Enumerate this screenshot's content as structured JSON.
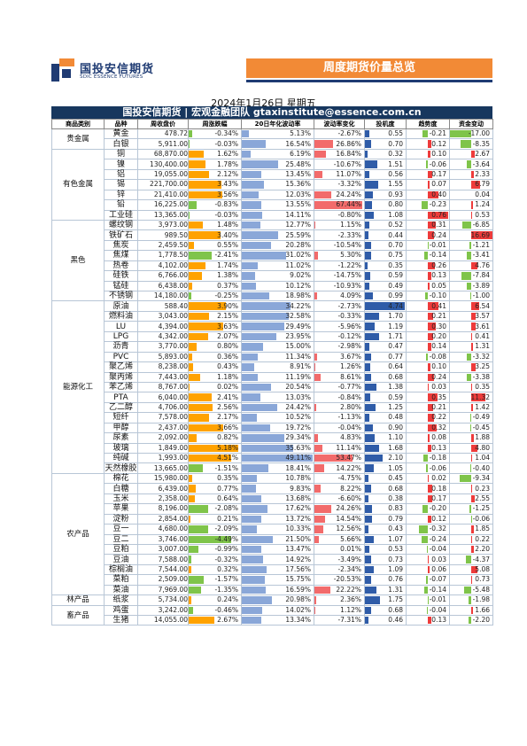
{
  "header": {
    "logo_cn": "国投安信期货",
    "logo_en": "SDIC ESSENCE FUTURES",
    "banner": "周度期货价量总览",
    "date": "2024年1月26日 星期五",
    "subtitle": "国投安信期货 | 宏观金融团队  gtaxinstitute@essence.com.cn"
  },
  "columns": [
    "商品类别",
    "品种",
    "周收盘价",
    "周涨跌幅",
    "20日年化波动率",
    "波动率变化",
    "投机度",
    "趋势度",
    "资金变动"
  ],
  "colors": {
    "up_bar": "#ffa200",
    "vol_bar": "#8aa7d8",
    "volchg_bar": "#f26b6b",
    "spec_bar": "#2f5ca8",
    "neg_bar": "#7fc44a",
    "pos_bar": "#ee3b3b",
    "banner": "#f28a36",
    "navy": "#17375e"
  },
  "groups": [
    {
      "category": "贵金属",
      "rows": [
        [
          "黄金",
          "478.72",
          "-0.34%",
          "5.13%",
          "-2.67%",
          "0.55",
          "-0.21",
          "-17.00"
        ],
        [
          "白银",
          "5,911.00",
          "-0.03%",
          "16.54%",
          "26.86%",
          "0.70",
          "0.12",
          "-8.35"
        ]
      ]
    },
    {
      "category": "有色金属",
      "rows": [
        [
          "铜",
          "68,870.00",
          "1.62%",
          "6.19%",
          "16.84%",
          "0.32",
          "0.10",
          "2.67"
        ],
        [
          "镍",
          "130,400.00",
          "1.78%",
          "25.48%",
          "-10.67%",
          "1.51",
          "-0.06",
          "-3.64"
        ],
        [
          "铝",
          "19,055.00",
          "2.12%",
          "13.45%",
          "11.07%",
          "0.56",
          "0.17",
          "2.33"
        ],
        [
          "锡",
          "221,700.00",
          "3.43%",
          "15.36%",
          "-3.32%",
          "1.55",
          "0.07",
          "6.79"
        ],
        [
          "锌",
          "21,410.00",
          "3.56%",
          "12.03%",
          "24.24%",
          "0.93",
          "0.40",
          "0.04"
        ],
        [
          "铅",
          "16,225.00",
          "-0.83%",
          "13.55%",
          "67.44%",
          "0.80",
          "-0.23",
          "1.24"
        ],
        [
          "工业硅",
          "13,365.00",
          "-0.03%",
          "14.11%",
          "-0.80%",
          "1.08",
          "0.76",
          "0.53"
        ]
      ]
    },
    {
      "category": "黑色",
      "rows": [
        [
          "螺纹钢",
          "3,973.00",
          "1.48%",
          "12.77%",
          "1.15%",
          "0.52",
          "0.31",
          "-6.85"
        ],
        [
          "铁矿石",
          "989.50",
          "3.40%",
          "25.59%",
          "-2.33%",
          "0.44",
          "0.24",
          "16.69"
        ],
        [
          "焦炭",
          "2,459.50",
          "0.55%",
          "20.28%",
          "-10.54%",
          "0.70",
          "-0.01",
          "-1.21"
        ],
        [
          "焦煤",
          "1,778.50",
          "-2.41%",
          "31.02%",
          "5.30%",
          "0.75",
          "-0.14",
          "-3.41"
        ],
        [
          "热卷",
          "4,102.00",
          "1.74%",
          "11.02%",
          "-1.22%",
          "0.35",
          "0.26",
          "4.76"
        ],
        [
          "硅铁",
          "6,766.00",
          "1.38%",
          "9.02%",
          "-14.75%",
          "0.59",
          "0.13",
          "-7.84"
        ],
        [
          "锰硅",
          "6,438.00",
          "0.37%",
          "10.12%",
          "-10.93%",
          "0.49",
          "0.05",
          "-3.89"
        ],
        [
          "不锈钢",
          "14,180.00",
          "-0.25%",
          "18.98%",
          "4.09%",
          "0.99",
          "-0.10",
          "-1.00"
        ]
      ]
    },
    {
      "category": "能源化工",
      "rows": [
        [
          "原油",
          "588.40",
          "3.90%",
          "34.22%",
          "-2.73%",
          "4.74",
          "0.41",
          "6.54"
        ],
        [
          "燃料油",
          "3,043.00",
          "2.15%",
          "32.58%",
          "-0.33%",
          "1.70",
          "0.21",
          "3.57"
        ],
        [
          "LU",
          "4,394.00",
          "3.63%",
          "29.49%",
          "-5.96%",
          "1.19",
          "0.30",
          "3.61"
        ],
        [
          "LPG",
          "4,342.00",
          "2.07%",
          "23.95%",
          "-0.12%",
          "1.71",
          "0.20",
          "0.41"
        ],
        [
          "沥青",
          "3,770.00",
          "0.80%",
          "15.00%",
          "-2.98%",
          "0.47",
          "0.14",
          "1.31"
        ],
        [
          "PVC",
          "5,893.00",
          "0.36%",
          "11.34%",
          "3.67%",
          "0.77",
          "-0.08",
          "-3.32"
        ],
        [
          "聚乙烯",
          "8,238.00",
          "0.43%",
          "8.91%",
          "1.26%",
          "0.64",
          "0.10",
          "3.25"
        ],
        [
          "聚丙烯",
          "7,443.00",
          "1.18%",
          "11.19%",
          "8.61%",
          "0.68",
          "0.24",
          "-3.38"
        ],
        [
          "苯乙烯",
          "8,767.00",
          "0.02%",
          "20.54%",
          "-0.77%",
          "1.38",
          "0.03",
          "0.35"
        ],
        [
          "PTA",
          "6,040.00",
          "2.41%",
          "13.03%",
          "-0.84%",
          "0.59",
          "0.35",
          "11.32"
        ],
        [
          "乙二醇",
          "4,706.00",
          "2.56%",
          "24.42%",
          "2.80%",
          "1.25",
          "0.21",
          "1.42"
        ],
        [
          "短纤",
          "7,578.00",
          "2.17%",
          "10.52%",
          "-1.13%",
          "0.48",
          "0.22",
          "-0.49"
        ],
        [
          "甲醇",
          "2,437.00",
          "3.66%",
          "19.72%",
          "-0.04%",
          "0.90",
          "0.32",
          "-0.45"
        ],
        [
          "尿素",
          "2,092.00",
          "0.82%",
          "29.34%",
          "4.83%",
          "1.10",
          "0.08",
          "1.88"
        ],
        [
          "玻璃",
          "1,849.00",
          "5.18%",
          "35.63%",
          "11.14%",
          "1.68",
          "0.13",
          "4.80"
        ],
        [
          "纯碱",
          "1,993.00",
          "4.51%",
          "49.11%",
          "53.47%",
          "2.10",
          "-0.18",
          "1.04"
        ],
        [
          "天然橡胶",
          "13,665.00",
          "-1.51%",
          "18.41%",
          "14.22%",
          "1.05",
          "-0.06",
          "-0.40"
        ]
      ]
    },
    {
      "category": "农产品",
      "rows": [
        [
          "棉花",
          "15,980.00",
          "0.35%",
          "10.78%",
          "-4.75%",
          "0.45",
          "0.02",
          "-9.34"
        ],
        [
          "白糖",
          "6,439.00",
          "0.77%",
          "9.83%",
          "8.22%",
          "0.68",
          "0.18",
          "0.23"
        ],
        [
          "玉米",
          "2,358.00",
          "0.64%",
          "13.68%",
          "-6.60%",
          "0.38",
          "0.17",
          "2.55"
        ],
        [
          "苹果",
          "8,196.00",
          "-2.08%",
          "17.62%",
          "24.26%",
          "0.83",
          "-0.20",
          "-1.25"
        ],
        [
          "淀粉",
          "2,854.00",
          "0.21%",
          "13.72%",
          "14.54%",
          "0.79",
          "0.12",
          "-0.06"
        ],
        [
          "豆一",
          "4,680.00",
          "-2.09%",
          "10.33%",
          "12.56%",
          "0.43",
          "-0.32",
          "1.85"
        ],
        [
          "豆二",
          "3,746.00",
          "-4.49%",
          "21.50%",
          "5.66%",
          "1.07",
          "-0.24",
          "0.22"
        ],
        [
          "豆粕",
          "3,007.00",
          "-0.99%",
          "13.47%",
          "0.01%",
          "0.53",
          "-0.04",
          "2.20"
        ],
        [
          "豆油",
          "7,588.00",
          "-0.32%",
          "14.92%",
          "-3.49%",
          "0.73",
          "0.03",
          "-4.37"
        ],
        [
          "棕榈油",
          "7,544.00",
          "0.32%",
          "17.56%",
          "-2.34%",
          "1.09",
          "0.06",
          "5.08"
        ],
        [
          "菜粕",
          "2,509.00",
          "-1.57%",
          "15.75%",
          "-20.53%",
          "0.76",
          "-0.07",
          "0.73"
        ],
        [
          "菜油",
          "7,969.00",
          "-1.35%",
          "16.59%",
          "22.22%",
          "1.31",
          "-0.14",
          "-5.48"
        ]
      ]
    },
    {
      "category": "林产品",
      "rows": [
        [
          "纸浆",
          "5,734.00",
          "0.24%",
          "20.98%",
          "2.36%",
          "1.75",
          "-0.01",
          "-1.98"
        ]
      ]
    },
    {
      "category": "畜产品",
      "rows": [
        [
          "鸡蛋",
          "3,242.00",
          "-0.46%",
          "14.02%",
          "1.12%",
          "0.68",
          "-0.04",
          "1.66"
        ],
        [
          "生猪",
          "14,055.00",
          "2.67%",
          "13.34%",
          "-7.31%",
          "0.46",
          "0.13",
          "-2.20"
        ]
      ]
    }
  ]
}
